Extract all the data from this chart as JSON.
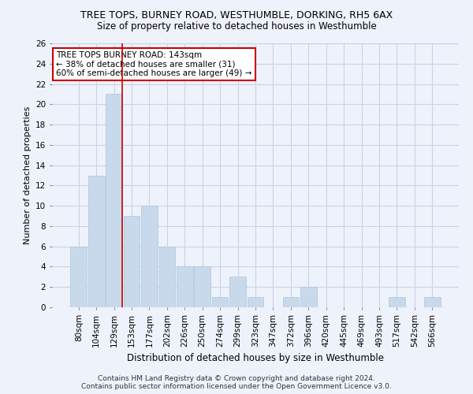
{
  "title": "TREE TOPS, BURNEY ROAD, WESTHUMBLE, DORKING, RH5 6AX",
  "subtitle": "Size of property relative to detached houses in Westhumble",
  "xlabel": "Distribution of detached houses by size in Westhumble",
  "ylabel": "Number of detached properties",
  "bar_color": "#c9d9ec",
  "bar_edge_color": "#aec4dc",
  "grid_color": "#c8d4e8",
  "bin_labels": [
    "80sqm",
    "104sqm",
    "129sqm",
    "153sqm",
    "177sqm",
    "202sqm",
    "226sqm",
    "250sqm",
    "274sqm",
    "299sqm",
    "323sqm",
    "347sqm",
    "372sqm",
    "396sqm",
    "420sqm",
    "445sqm",
    "469sqm",
    "493sqm",
    "517sqm",
    "542sqm",
    "566sqm"
  ],
  "values": [
    6,
    13,
    21,
    9,
    10,
    6,
    4,
    4,
    1,
    3,
    1,
    0,
    1,
    2,
    0,
    0,
    0,
    0,
    1,
    0,
    1
  ],
  "ylim": [
    0,
    26
  ],
  "yticks": [
    0,
    2,
    4,
    6,
    8,
    10,
    12,
    14,
    16,
    18,
    20,
    22,
    24,
    26
  ],
  "vline_x_index": 2,
  "annotation_text": "TREE TOPS BURNEY ROAD: 143sqm\n← 38% of detached houses are smaller (31)\n60% of semi-detached houses are larger (49) →",
  "annotation_box_color": "#ffffff",
  "annotation_box_edge": "#cc0000",
  "footer_line1": "Contains HM Land Registry data © Crown copyright and database right 2024.",
  "footer_line2": "Contains public sector information licensed under the Open Government Licence v3.0.",
  "bg_color": "#eef2fb",
  "plot_bg_color": "#eef2fb",
  "vline_color": "#cc0000",
  "title_fontsize": 9,
  "subtitle_fontsize": 8.5,
  "ylabel_fontsize": 8,
  "xlabel_fontsize": 8.5,
  "tick_fontsize": 7.5,
  "annot_fontsize": 7.5,
  "footer_fontsize": 6.5
}
